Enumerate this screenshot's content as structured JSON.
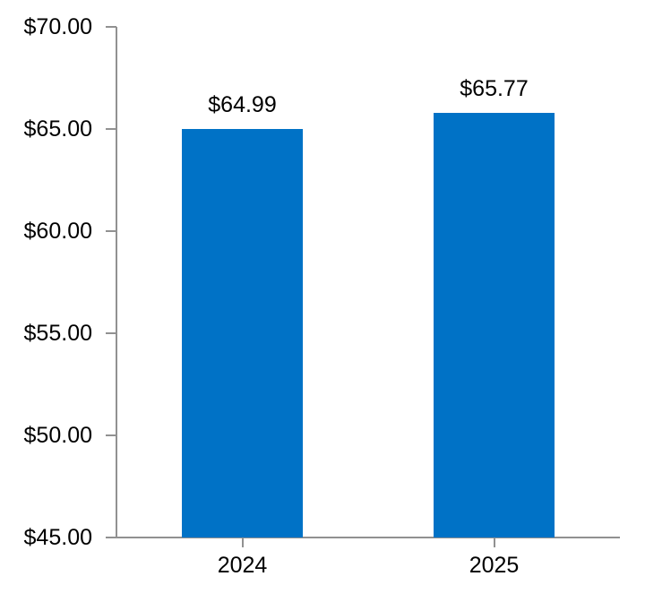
{
  "chart_data": {
    "type": "bar",
    "title": "",
    "xlabel": "",
    "ylabel": "",
    "categories": [
      "2024",
      "2025"
    ],
    "values": [
      64.99,
      65.77
    ],
    "value_labels": [
      "$64.99",
      "$65.77"
    ],
    "y_tick_values": [
      70,
      65,
      60,
      55,
      50,
      45
    ],
    "y_tick_labels": [
      "$70.00",
      "$65.00",
      "$60.00",
      "$55.00",
      "$50.00",
      "$45.00"
    ],
    "ylim": [
      45,
      70
    ],
    "grid": "off",
    "legend": "none",
    "colors": {
      "bar": "#0072C6",
      "axis": "#919191",
      "text": "#000000",
      "background": "#FFFFFF"
    }
  }
}
